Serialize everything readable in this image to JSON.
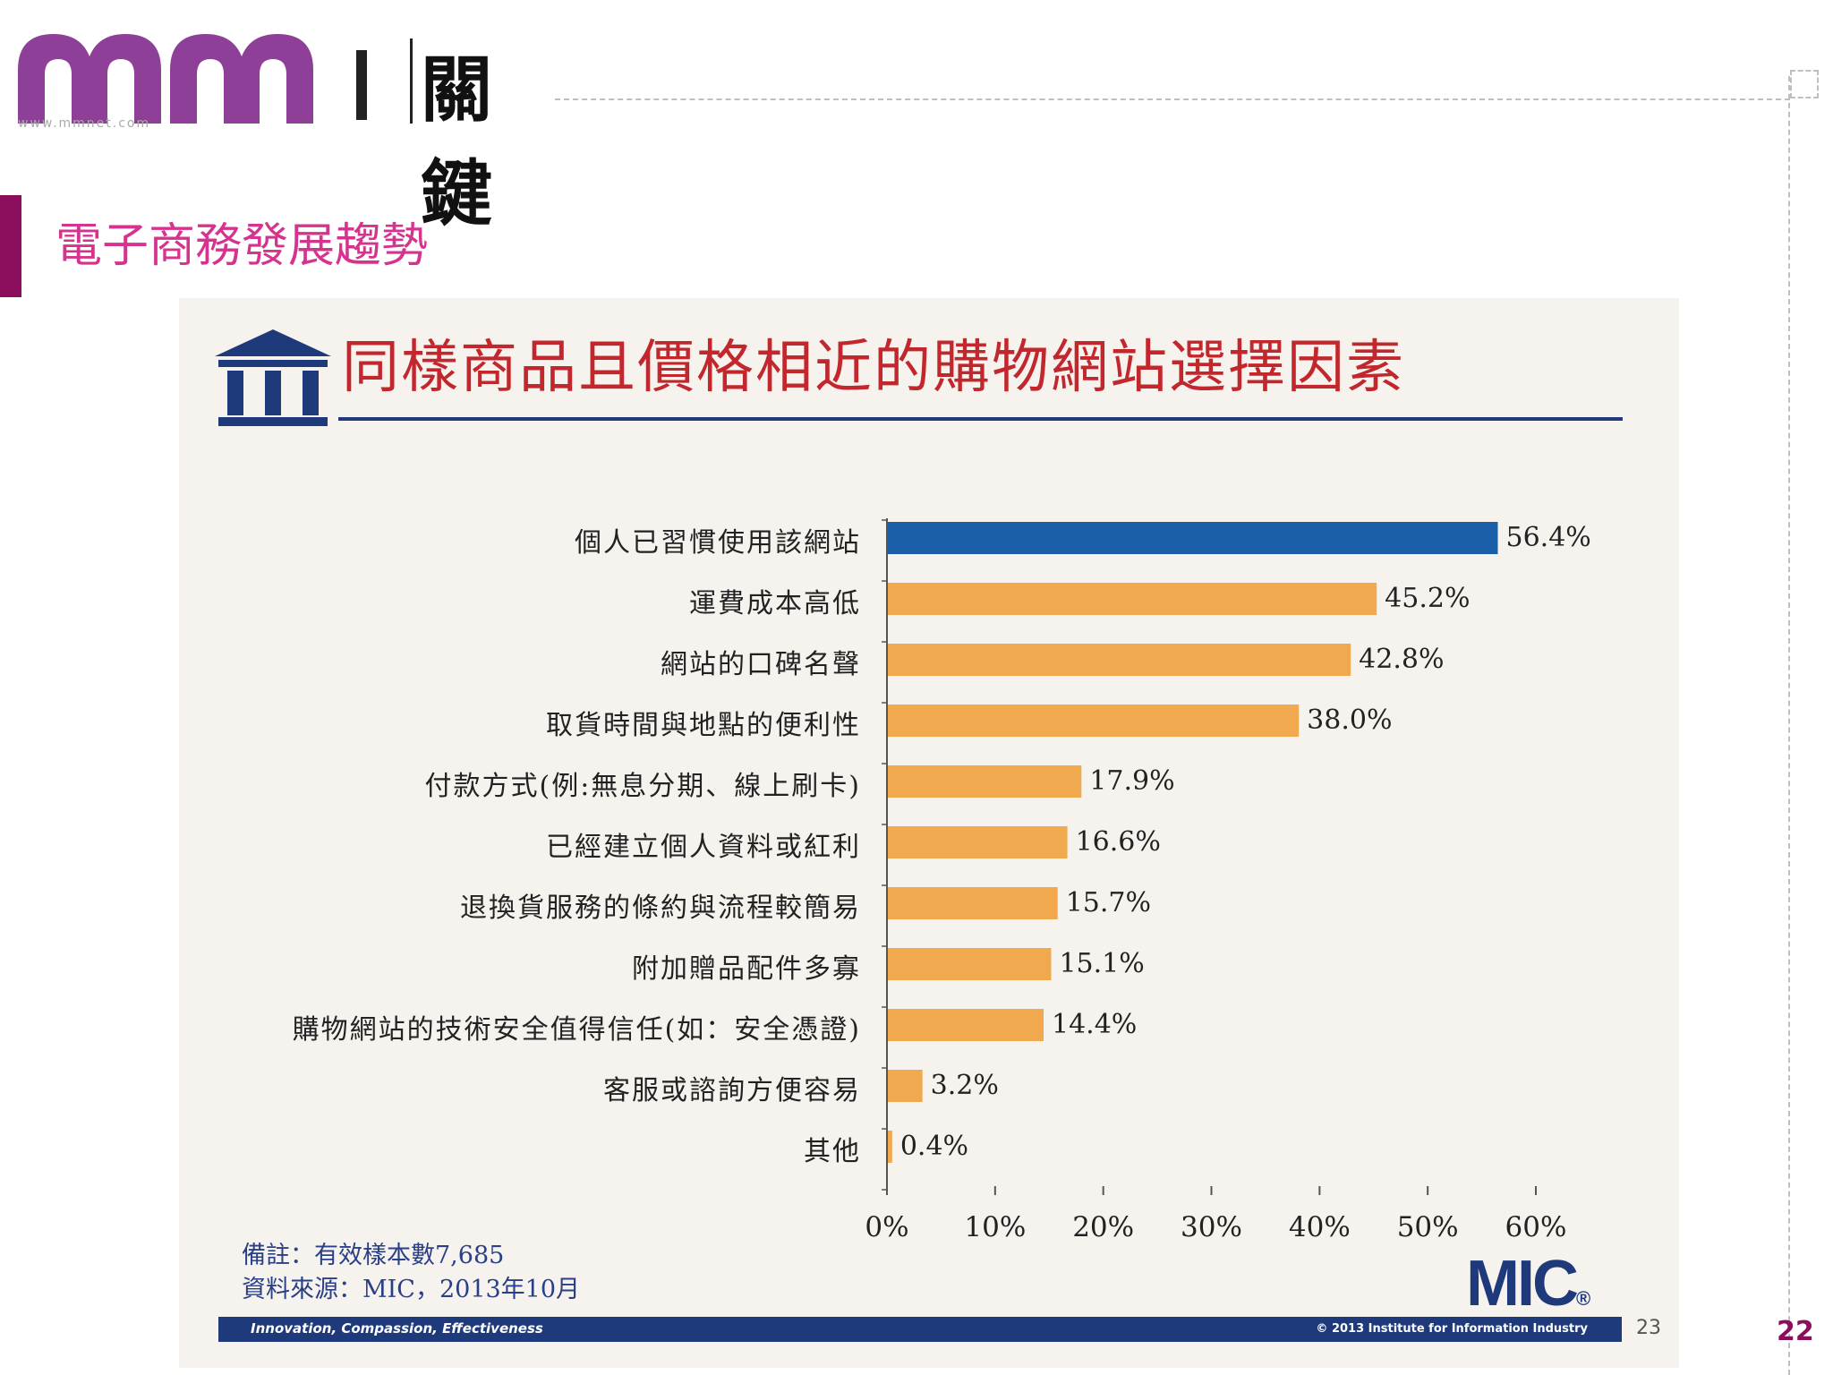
{
  "header": {
    "logo_text": "關鍵",
    "logo_subtext": "www.mmnet.com",
    "section_title": "電子商務發展趨勢",
    "page_number": "22"
  },
  "slide": {
    "title": "同樣商品且價格相近的購物網站選擇因素",
    "note_line1": "備註：有效樣本數7,685",
    "note_line2": "資料來源：MIC，2013年10月",
    "brand": "MIC",
    "brand_mark": "®",
    "footer_left": "Innovation, Compassion, Effectiveness",
    "footer_right": "© 2013 Institute for Information Industry",
    "slide_number": "23"
  },
  "chart_data": {
    "type": "bar",
    "orientation": "horizontal",
    "title": "同樣商品且價格相近的購物網站選擇因素",
    "categories": [
      "個人已習慣使用該網站",
      "運費成本高低",
      "網站的口碑名聲",
      "取貨時間與地點的便利性",
      "付款方式(例:無息分期、線上刷卡)",
      "已經建立個人資料或紅利",
      "退換貨服務的條約與流程較簡易",
      "附加贈品配件多寡",
      "購物網站的技術安全值得信任(如：安全憑證)",
      "客服或諮詢方便容易",
      "其他"
    ],
    "values": [
      56.4,
      45.2,
      42.8,
      38.0,
      17.9,
      16.6,
      15.7,
      15.1,
      14.4,
      3.2,
      0.4
    ],
    "value_labels": [
      "56.4%",
      "45.2%",
      "42.8%",
      "38.0%",
      "17.9%",
      "16.6%",
      "15.7%",
      "15.1%",
      "14.4%",
      "3.2%",
      "0.4%"
    ],
    "xlim": [
      0,
      60
    ],
    "xticks": [
      "0%",
      "10%",
      "20%",
      "30%",
      "40%",
      "50%",
      "60%"
    ],
    "colors": {
      "highlight": "#1a5fa8",
      "default": "#f0a94f"
    },
    "xlabel": "",
    "ylabel": ""
  }
}
